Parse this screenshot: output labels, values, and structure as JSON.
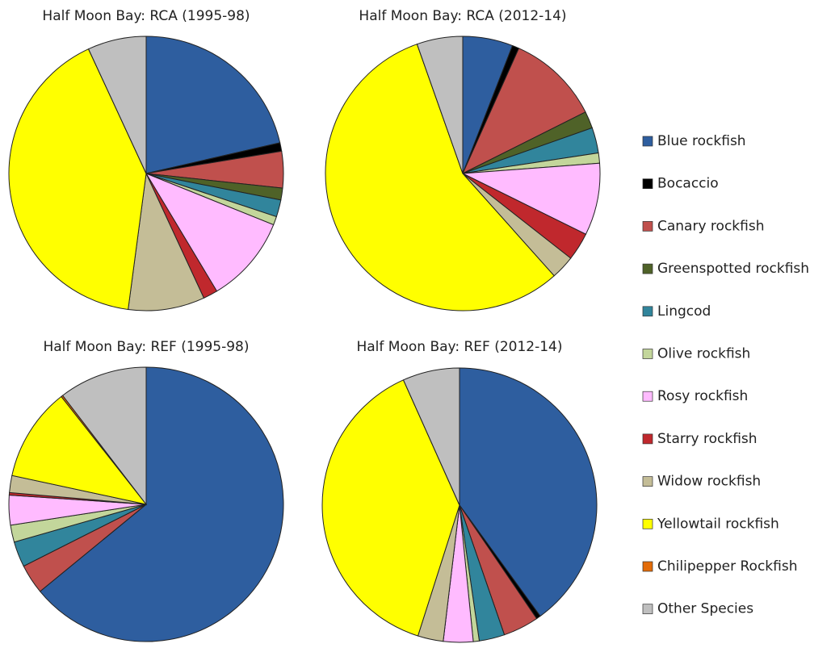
{
  "chart_data": [
    {
      "type": "pie",
      "title": "Half Moon Bay: RCA (1995-98)",
      "categories": [
        "Blue rockfish",
        "Bocaccio",
        "Canary rockfish",
        "Greenspotted rockfish",
        "Lingcod",
        "Olive rockfish",
        "Rosy rockfish",
        "Starry rockfish",
        "Widow rockfish",
        "Yellowtail rockfish",
        "Chilipepper Rockfish",
        "Other Species"
      ],
      "values": [
        21.4,
        1,
        4.3,
        1.4,
        2,
        1,
        10.3,
        1.7,
        9,
        41,
        0,
        6.9
      ],
      "colors": [
        "#2e5e9f",
        "#000000",
        "#c0504d",
        "#4f6228",
        "#31859c",
        "#c3d69b",
        "#ffbbff",
        "#c0282d",
        "#c4bd97",
        "#ffff00",
        "#e36c09",
        "#bfbfbf"
      ]
    },
    {
      "type": "pie",
      "title": "Half Moon Bay: RCA (2012-14)",
      "categories": [
        "Blue rockfish",
        "Bocaccio",
        "Canary rockfish",
        "Greenspotted rockfish",
        "Lingcod",
        "Olive rockfish",
        "Rosy rockfish",
        "Starry rockfish",
        "Widow rockfish",
        "Yellowtail rockfish",
        "Chilipepper Rockfish",
        "Other Species"
      ],
      "values": [
        5.9,
        0.8,
        10.9,
        2,
        3,
        1.2,
        8.5,
        3.3,
        2.8,
        56.2,
        0,
        5.4
      ],
      "colors": [
        "#2e5e9f",
        "#000000",
        "#c0504d",
        "#4f6228",
        "#31859c",
        "#c3d69b",
        "#ffbbff",
        "#c0282d",
        "#c4bd97",
        "#ffff00",
        "#e36c09",
        "#bfbfbf"
      ]
    },
    {
      "type": "pie",
      "title": "Half Moon Bay: REF (1995-98)",
      "categories": [
        "Blue rockfish",
        "Bocaccio",
        "Canary rockfish",
        "Greenspotted rockfish",
        "Lingcod",
        "Olive rockfish",
        "Rosy rockfish",
        "Starry rockfish",
        "Widow rockfish",
        "Yellowtail rockfish",
        "Chilipepper Rockfish",
        "Other Species"
      ],
      "values": [
        64,
        0,
        3.5,
        0,
        3,
        2,
        3.5,
        0.3,
        2,
        11,
        0.2,
        10.4
      ],
      "colors": [
        "#2e5e9f",
        "#000000",
        "#c0504d",
        "#4f6228",
        "#31859c",
        "#c3d69b",
        "#ffbbff",
        "#c0282d",
        "#c4bd97",
        "#ffff00",
        "#e36c09",
        "#bfbfbf"
      ]
    },
    {
      "type": "pie",
      "title": "Half Moon Bay: REF  (2012-14)",
      "categories": [
        "Blue rockfish",
        "Bocaccio",
        "Canary rockfish",
        "Greenspotted rockfish",
        "Lingcod",
        "Olive rockfish",
        "Rosy rockfish",
        "Starry rockfish",
        "Widow rockfish",
        "Yellowtail rockfish",
        "Chilipepper Rockfish",
        "Other Species"
      ],
      "values": [
        40,
        0.5,
        4.2,
        0,
        3,
        0.7,
        3.5,
        0,
        3,
        38.4,
        0,
        6.7
      ],
      "colors": [
        "#2e5e9f",
        "#000000",
        "#c0504d",
        "#4f6228",
        "#31859c",
        "#c3d69b",
        "#ffbbff",
        "#c0282d",
        "#c4bd97",
        "#ffff00",
        "#e36c09",
        "#bfbfbf"
      ]
    }
  ]
}
